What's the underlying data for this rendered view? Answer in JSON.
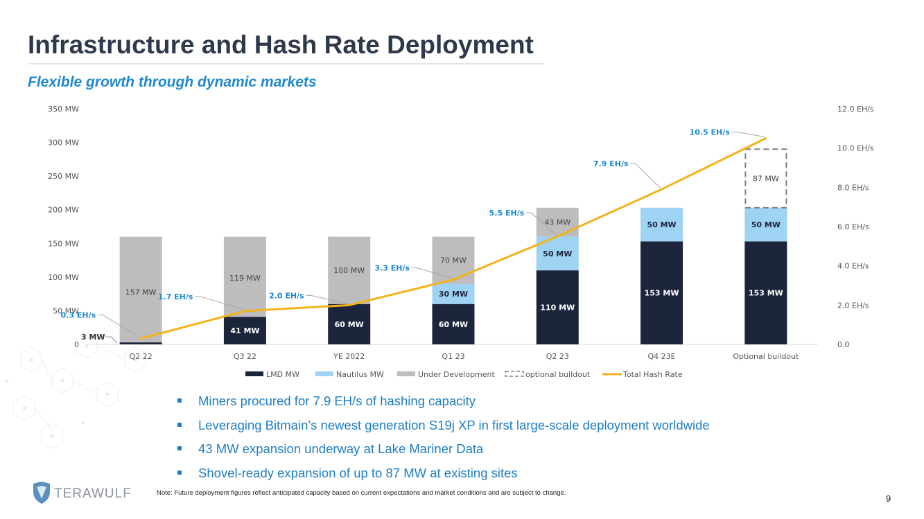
{
  "title": "Infrastructure and Hash Rate Deployment",
  "subtitle": "Flexible growth through dynamic markets",
  "colors": {
    "title": "#2e3a4c",
    "accent_blue": "#1e88d0",
    "lmd": "#1d253c",
    "nautilus": "#9fd3f4",
    "under_development": "#bdbdbd",
    "hash_rate_line": "#f2b31a",
    "optional_outline": "#7f7f7f"
  },
  "chart_data": {
    "type": "bar",
    "stacked": true,
    "categories": [
      "Q2 22",
      "Q3 22",
      "YE 2022",
      "Q1 23",
      "Q2 23",
      "Q4 23E",
      "Optional buildout"
    ],
    "y_left_ticks": [
      "0",
      "50 MW",
      "100 MW",
      "150 MW",
      "200 MW",
      "250 MW",
      "300 MW",
      "350 MW"
    ],
    "y_right_ticks": [
      "0.0",
      "2.0 EH/s",
      "4.0 EH/s",
      "6.0 EH/s",
      "8.0 EH/s",
      "10.0 EH/s",
      "12.0 EH/s"
    ],
    "ylim_left": [
      0,
      350
    ],
    "ylim_right": [
      0,
      12
    ],
    "series": [
      {
        "name": "LMD MW",
        "color": "#1d253c",
        "values": [
          3,
          41,
          60,
          60,
          110,
          153,
          153
        ],
        "labels": [
          "3 MW",
          "41 MW",
          "60 MW",
          "60 MW",
          "110 MW",
          "153 MW",
          "153 MW"
        ]
      },
      {
        "name": "Nautilus MW",
        "color": "#9fd3f4",
        "values": [
          0,
          0,
          0,
          30,
          50,
          50,
          50
        ],
        "labels": [
          "",
          "",
          "",
          "30 MW",
          "50 MW",
          "50 MW",
          "50 MW"
        ]
      },
      {
        "name": "Under Development",
        "color": "#bdbdbd",
        "values": [
          157,
          119,
          100,
          70,
          43,
          0,
          0
        ],
        "labels": [
          "157 MW",
          "119 MW",
          "100 MW",
          "70 MW",
          "43 MW",
          "",
          ""
        ]
      },
      {
        "name": "optional buildout",
        "style": "dashed-outline",
        "values": [
          0,
          0,
          0,
          0,
          0,
          0,
          87
        ],
        "labels": [
          "",
          "",
          "",
          "",
          "",
          "",
          "87 MW"
        ]
      }
    ],
    "line": {
      "name": "Total Hash Rate",
      "color": "#f2b31a",
      "axis": "right",
      "values": [
        0.3,
        1.7,
        2.0,
        3.3,
        5.5,
        7.9,
        10.5
      ],
      "labels": [
        "0.3 EH/s",
        "1.7 EH/s",
        "2.0 EH/s",
        "3.3 EH/s",
        "5.5 EH/s",
        "7.9 EH/s",
        "10.5 EH/s"
      ]
    },
    "legend": [
      "LMD MW",
      "Nautilus MW",
      "Under Development",
      "optional buildout",
      "Total Hash Rate"
    ],
    "legend_position": "bottom",
    "grid": false
  },
  "bullets": [
    "Miners procured for 7.9 EH/s of hashing capacity",
    "Leveraging Bitmain’s newest generation S19j XP in first large-scale deployment worldwide",
    "43 MW expansion underway at Lake Mariner Data",
    "Shovel-ready expansion of up to 87 MW at existing sites"
  ],
  "note": "Note: Future deployment figures reflect anticipated capacity based on current expectations and market conditions and are subject to change.",
  "page_number": "9",
  "logo": {
    "text": "TERAWULF",
    "icon": "wolf-shield-icon"
  }
}
